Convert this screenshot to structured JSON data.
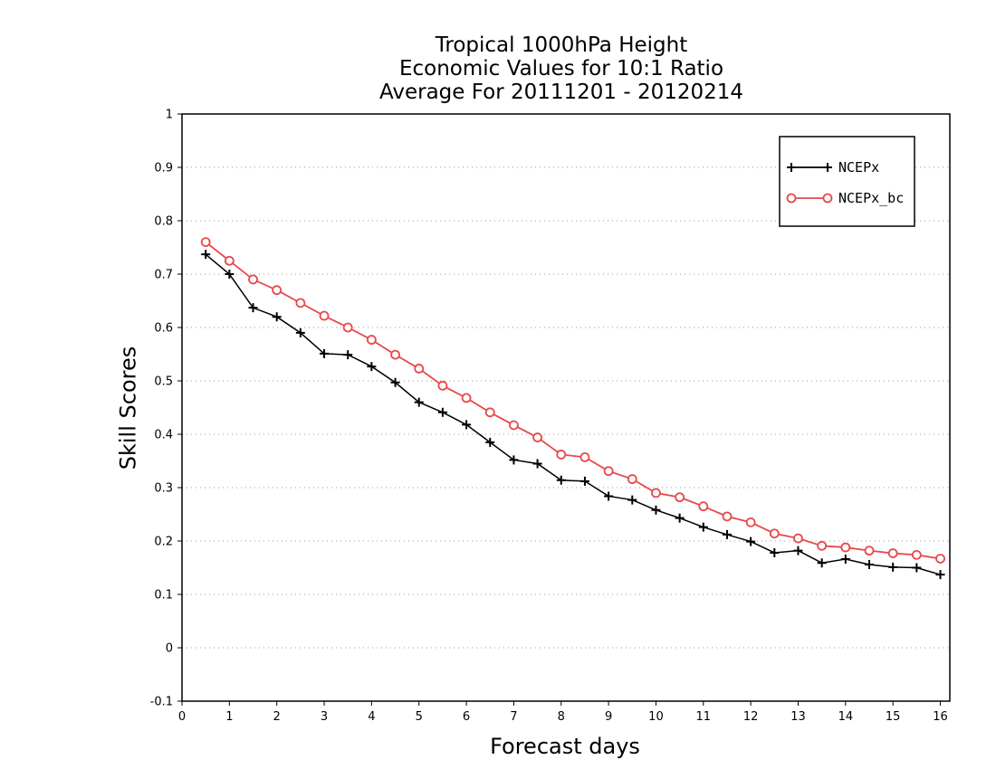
{
  "chart_data": {
    "type": "line",
    "title": [
      "Tropical 1000hPa Height",
      "Economic Values for 10:1 Ratio",
      "Average For 20111201 - 20120214"
    ],
    "xlabel": "Forecast days",
    "ylabel": "Skill Scores",
    "xlim": [
      0,
      16.2
    ],
    "ylim": [
      -0.1,
      1
    ],
    "xticks": [
      0,
      1,
      2,
      3,
      4,
      5,
      6,
      7,
      8,
      9,
      10,
      11,
      12,
      13,
      14,
      15,
      16
    ],
    "xtick_labels": [
      "0",
      "1",
      "2",
      "3",
      "4",
      "5",
      "6",
      "7",
      "8",
      "9",
      "10",
      "11",
      "12",
      "13",
      "14",
      "15",
      "16"
    ],
    "yticks": [
      -0.1,
      0,
      0.1,
      0.2,
      0.3,
      0.4,
      0.5,
      0.6,
      0.7,
      0.8,
      0.9,
      1
    ],
    "ytick_labels": [
      "-0.1",
      "0",
      "0.1",
      "0.2",
      "0.3",
      "0.4",
      "0.5",
      "0.6",
      "0.7",
      "0.8",
      "0.9",
      "1"
    ],
    "grid": true,
    "legend_position": "top-right",
    "x": [
      0.5,
      1,
      1.5,
      2,
      2.5,
      3,
      3.5,
      4,
      4.5,
      5,
      5.5,
      6,
      6.5,
      7,
      7.5,
      8,
      8.5,
      9,
      9.5,
      10,
      10.5,
      11,
      11.5,
      12,
      12.5,
      13,
      13.5,
      14,
      14.5,
      15,
      15.5,
      16
    ],
    "series": [
      {
        "name": "NCEPx",
        "color": "#000000",
        "marker": "plus",
        "values": [
          0.737,
          0.7,
          0.637,
          0.62,
          0.59,
          0.551,
          0.549,
          0.527,
          0.497,
          0.46,
          0.441,
          0.418,
          0.385,
          0.352,
          0.345,
          0.314,
          0.312,
          0.284,
          0.277,
          0.258,
          0.243,
          0.226,
          0.212,
          0.199,
          0.178,
          0.182,
          0.159,
          0.166,
          0.156,
          0.151,
          0.15,
          0.137
        ]
      },
      {
        "name": "NCEPx_bc",
        "color": "#e8484a",
        "marker": "circle",
        "values": [
          0.76,
          0.725,
          0.69,
          0.67,
          0.646,
          0.622,
          0.6,
          0.577,
          0.549,
          0.523,
          0.491,
          0.468,
          0.441,
          0.417,
          0.394,
          0.362,
          0.357,
          0.331,
          0.316,
          0.29,
          0.282,
          0.265,
          0.246,
          0.235,
          0.214,
          0.205,
          0.191,
          0.188,
          0.182,
          0.177,
          0.174,
          0.167
        ]
      }
    ]
  }
}
